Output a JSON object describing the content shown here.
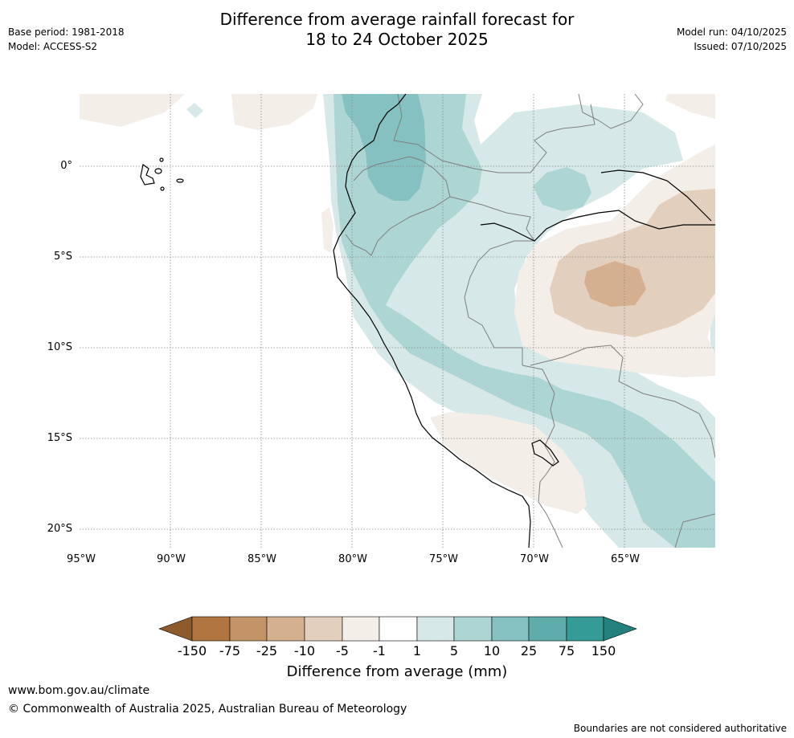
{
  "title": {
    "line1": "Difference from average rainfall forecast for",
    "line2": "18 to 24 October 2025"
  },
  "meta": {
    "base_period": "Base period: 1981-2018",
    "model": "Model: ACCESS-S2",
    "model_run": "Model run: 04/10/2025",
    "issued": "Issued: 07/10/2025"
  },
  "map": {
    "latitude_labels": [
      "0°",
      "5°S",
      "10°S",
      "15°S",
      "20°S"
    ],
    "longitude_labels": [
      "95°W",
      "90°W",
      "85°W",
      "80°W",
      "75°W",
      "70°W",
      "65°W"
    ]
  },
  "colorbar": {
    "title": "Difference from average (mm)",
    "ticks": [
      "-150",
      "-75",
      "-25",
      "-10",
      "-5",
      "-1",
      "1",
      "5",
      "10",
      "25",
      "75",
      "150"
    ],
    "colors": [
      "#8c5a2b",
      "#b07540",
      "#c29468",
      "#d4b090",
      "#e3cfbd",
      "#f3eee8",
      "#ffffff",
      "#d6e9e8",
      "#acd5d4",
      "#84c1c0",
      "#5eadab",
      "#349b97",
      "#24807c"
    ]
  },
  "footer": {
    "url": "www.bom.gov.au/climate",
    "copyright": "© Commonwealth of Australia 2025, Australian Bureau of Meteorology",
    "disclaimer": "Boundaries are not considered authoritative"
  }
}
